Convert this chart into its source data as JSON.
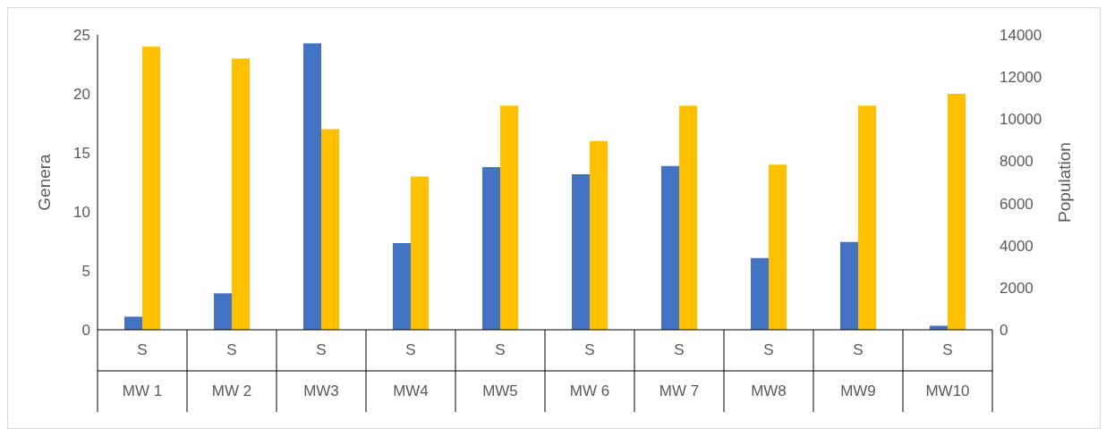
{
  "chart_data": {
    "type": "bar",
    "ylabel": "Genera",
    "y2label": "Population",
    "categories": [
      "S\nMW 1",
      "S\nMW 2",
      "S\nMW3",
      "S\nMW4",
      "S\nMW5",
      "S\nMW 6",
      "S\nMW 7",
      "S\nMW8",
      "S\nMW9",
      "S\nMW10"
    ],
    "series": [
      {
        "color": "#4472c4",
        "axis": "y2",
        "values": [
          620,
          1730,
          13600,
          4120,
          7720,
          7380,
          7770,
          3400,
          4170,
          190
        ]
      },
      {
        "color": "#ffc000",
        "values": [
          24,
          23,
          17,
          13,
          19,
          16,
          19,
          14,
          19,
          20
        ]
      }
    ],
    "ylim": [
      0,
      25
    ],
    "yticks": [
      0,
      5,
      10,
      15,
      20,
      25
    ],
    "y2lim": [
      0,
      14000
    ],
    "y2ticks": [
      0,
      2000,
      4000,
      6000,
      8000,
      10000,
      12000,
      14000
    ],
    "grid": false,
    "legend": false
  }
}
